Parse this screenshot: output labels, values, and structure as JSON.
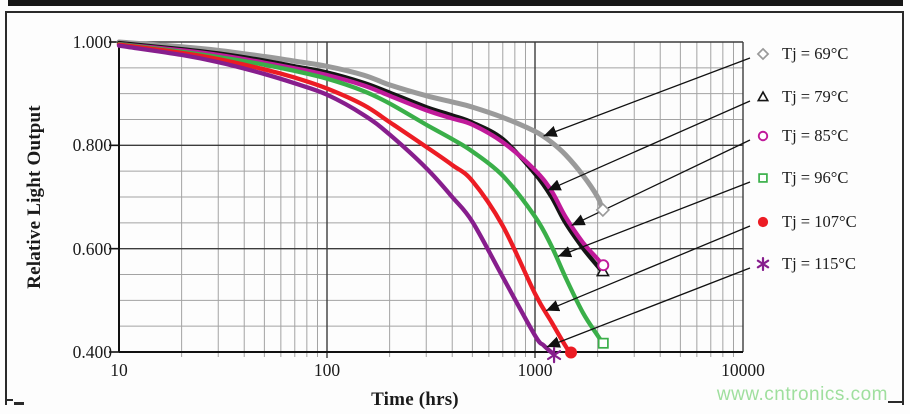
{
  "figure": {
    "watermark": "www.cntronics.com",
    "watermark_color": "#9fdf9e"
  },
  "chart_data": {
    "type": "line",
    "title": "",
    "xlabel": "Time (hrs)",
    "ylabel": "Relative Light Output",
    "x_scale": "log",
    "xlim": [
      10,
      10000
    ],
    "ylim": [
      0.4,
      1.0
    ],
    "x_tick_labels": [
      "10",
      "100",
      "1000",
      "10000"
    ],
    "y_tick_labels": [
      "1.000",
      "0.800",
      "0.600",
      "0.400"
    ],
    "y_tick_values": [
      1.0,
      0.8,
      0.6,
      0.4
    ],
    "y_minor_step": 0.05,
    "grid": true,
    "minor_grid": true,
    "legend_position": "right-outside",
    "series": [
      {
        "name": "Tj = 69°C",
        "marker": "diamond",
        "color": "#9a9a9a",
        "t": [
          10,
          20,
          30,
          50,
          70,
          100,
          150,
          200,
          300,
          400,
          500,
          700,
          1000,
          1200,
          1400,
          1700,
          2000,
          2080
        ],
        "v": [
          1.0,
          0.991,
          0.984,
          0.972,
          0.963,
          0.953,
          0.936,
          0.917,
          0.896,
          0.884,
          0.874,
          0.854,
          0.827,
          0.806,
          0.782,
          0.742,
          0.7,
          0.682
        ],
        "end_marker": {
          "t": 2120,
          "v": 0.675
        }
      },
      {
        "name": "Tj = 79°C",
        "marker": "triangle",
        "color": "#151515",
        "t": [
          10,
          20,
          30,
          50,
          70,
          100,
          150,
          200,
          300,
          400,
          500,
          700,
          1000,
          1200,
          1400,
          1700,
          2000,
          2080
        ],
        "v": [
          0.998,
          0.986,
          0.978,
          0.964,
          0.953,
          0.941,
          0.921,
          0.902,
          0.874,
          0.858,
          0.844,
          0.812,
          0.745,
          0.7,
          0.65,
          0.601,
          0.566,
          0.558
        ],
        "end_marker": {
          "t": 2120,
          "v": 0.556
        }
      },
      {
        "name": "Tj = 85°C",
        "marker": "circle",
        "color": "#c01a9a",
        "t": [
          10,
          20,
          30,
          50,
          70,
          100,
          150,
          200,
          300,
          400,
          500,
          700,
          1000,
          1200,
          1400,
          1700,
          2000,
          2090
        ],
        "v": [
          0.996,
          0.984,
          0.975,
          0.96,
          0.949,
          0.936,
          0.916,
          0.896,
          0.868,
          0.852,
          0.84,
          0.806,
          0.752,
          0.712,
          0.662,
          0.612,
          0.58,
          0.571
        ],
        "end_marker": {
          "t": 2130,
          "v": 0.568
        }
      },
      {
        "name": "Tj = 96°C",
        "marker": "square",
        "color": "#3aaf49",
        "t": [
          10,
          20,
          30,
          50,
          70,
          100,
          150,
          200,
          300,
          400,
          500,
          700,
          1000,
          1200,
          1400,
          1700,
          2000,
          2090
        ],
        "v": [
          0.996,
          0.981,
          0.971,
          0.956,
          0.944,
          0.929,
          0.905,
          0.881,
          0.84,
          0.812,
          0.788,
          0.741,
          0.662,
          0.605,
          0.545,
          0.476,
          0.432,
          0.421
        ],
        "end_marker": {
          "t": 2130,
          "v": 0.417
        }
      },
      {
        "name": "Tj = 107°C",
        "marker": "dot",
        "color": "#ec1c24",
        "t": [
          10,
          20,
          30,
          50,
          70,
          100,
          150,
          200,
          300,
          400,
          500,
          700,
          1000,
          1200,
          1400,
          1460
        ],
        "v": [
          0.995,
          0.979,
          0.967,
          0.947,
          0.931,
          0.91,
          0.878,
          0.845,
          0.797,
          0.762,
          0.731,
          0.644,
          0.513,
          0.458,
          0.412,
          0.401
        ],
        "end_marker": {
          "t": 1490,
          "v": 0.399
        }
      },
      {
        "name": "Tj = 115°C",
        "marker": "asterisk",
        "color": "#871e8d",
        "t": [
          10,
          20,
          30,
          50,
          70,
          100,
          150,
          200,
          300,
          400,
          500,
          700,
          1000,
          1100,
          1210
        ],
        "v": [
          0.993,
          0.975,
          0.961,
          0.938,
          0.92,
          0.898,
          0.859,
          0.821,
          0.756,
          0.7,
          0.652,
          0.545,
          0.432,
          0.413,
          0.398
        ],
        "end_marker": {
          "t": 1235,
          "v": 0.394
        }
      }
    ],
    "annotation_arrows": [
      {
        "series": "Tj = 69°C",
        "to_t": 1100,
        "to_v": 0.818
      },
      {
        "series": "Tj = 79°C",
        "to_t": 1150,
        "to_v": 0.713
      },
      {
        "series": "Tj = 85°C",
        "to_t": 1500,
        "to_v": 0.645
      },
      {
        "series": "Tj = 96°C",
        "to_t": 1290,
        "to_v": 0.585
      },
      {
        "series": "Tj = 107°C",
        "to_t": 1130,
        "to_v": 0.48
      },
      {
        "series": "Tj = 115°C",
        "to_t": 1140,
        "to_v": 0.41
      }
    ]
  }
}
